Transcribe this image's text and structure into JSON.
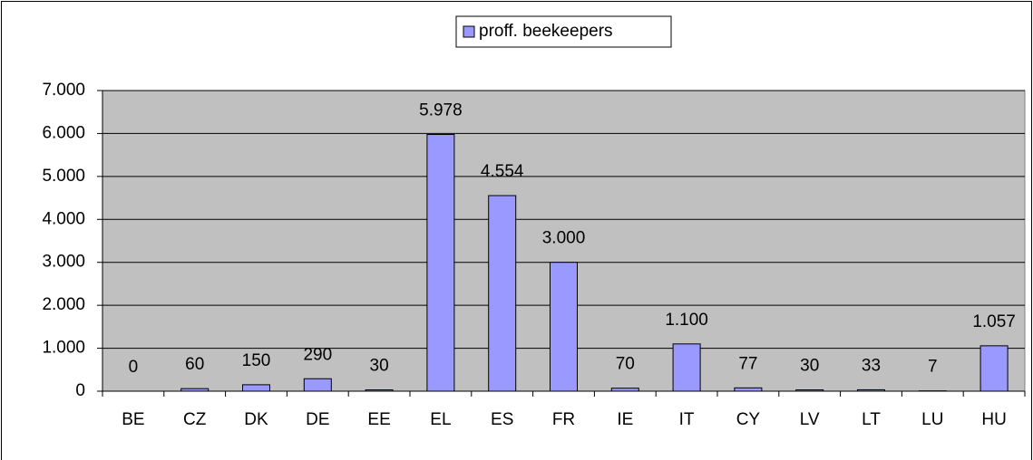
{
  "chart_data": {
    "type": "bar",
    "categories": [
      "BE",
      "CZ",
      "DK",
      "DE",
      "EE",
      "EL",
      "ES",
      "FR",
      "IE",
      "IT",
      "CY",
      "LV",
      "LT",
      "LU",
      "HU"
    ],
    "series": [
      {
        "name": "proff. beekeepers",
        "color": "#9999ff",
        "values": [
          0,
          60,
          150,
          290,
          30,
          5978,
          4554,
          3000,
          70,
          1100,
          77,
          30,
          33,
          7,
          1057
        ],
        "value_labels": [
          "0",
          "60",
          "150",
          "290",
          "30",
          "5.978",
          "4.554",
          "3.000",
          "70",
          "1.100",
          "77",
          "30",
          "33",
          "7",
          "1.057"
        ]
      }
    ],
    "ylim": [
      0,
      7000
    ],
    "yticks": [
      0,
      {
        "value": 1000,
        "label": "1.000"
      },
      {
        "value": 2000,
        "label": "2.000"
      },
      {
        "value": 3000,
        "label": "3.000"
      },
      {
        "value": 4000,
        "label": "4.000"
      },
      {
        "value": 5000,
        "label": "5.000"
      },
      {
        "value": 6000,
        "label": "6.000"
      },
      {
        "value": 7000,
        "label": "7.000"
      }
    ],
    "grid": true,
    "legend": "top",
    "plot_background": "#c0c0c0"
  }
}
